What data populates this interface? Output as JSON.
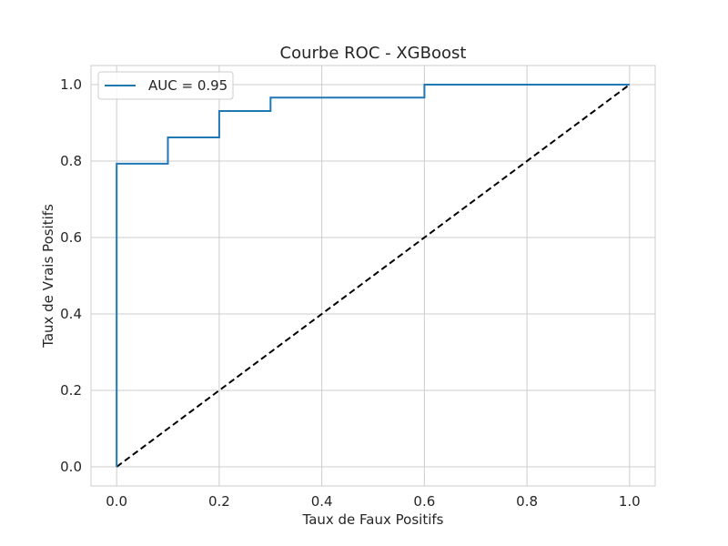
{
  "chart_data": {
    "type": "line",
    "title": "Courbe ROC - XGBoost",
    "xlabel": "Taux de Faux Positifs",
    "ylabel": "Taux de Vrais Positifs",
    "xlim": [
      -0.05,
      1.05
    ],
    "ylim": [
      -0.05,
      1.05
    ],
    "xticks": [
      "0.0",
      "0.2",
      "0.4",
      "0.6",
      "0.8",
      "1.0"
    ],
    "yticks": [
      "0.0",
      "0.2",
      "0.4",
      "0.6",
      "0.8",
      "1.0"
    ],
    "grid": true,
    "legend_position": "top-left",
    "series": [
      {
        "name": "AUC = 0.95",
        "color": "#1f77b4",
        "style": "solid",
        "x": [
          0.0,
          0.0,
          0.0,
          0.1,
          0.1,
          0.2,
          0.2,
          0.3,
          0.3,
          0.6,
          0.6,
          1.0
        ],
        "y": [
          0.0,
          0.034,
          0.793,
          0.793,
          0.862,
          0.862,
          0.931,
          0.931,
          0.966,
          0.966,
          1.0,
          1.0
        ]
      },
      {
        "color": "#000000",
        "style": "dashed",
        "x": [
          0.0,
          1.0
        ],
        "y": [
          0.0,
          1.0
        ]
      }
    ]
  }
}
